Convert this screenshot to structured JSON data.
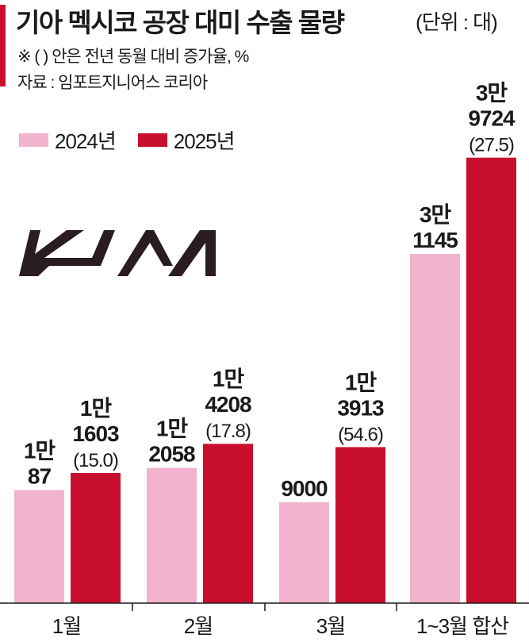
{
  "header": {
    "title": "기아 멕시코 공장 대미 수출 물량",
    "unit": "(단위 : 대)",
    "note": "※ (  ) 안은 전년 동월 대비 증가율, %",
    "source": "자료 : 임포트지니어스 코리아"
  },
  "logo": {
    "icon": "kia-logo",
    "text": "KIA"
  },
  "colors": {
    "accent": "#c8102e",
    "series_2024": "#f2b3cf",
    "series_2025": "#c8102e"
  },
  "chart_data": {
    "type": "bar",
    "categories": [
      "1월",
      "2월",
      "3월",
      "1~3월 합산"
    ],
    "series": [
      {
        "name": "2024년",
        "values": [
          10087,
          12058,
          9000,
          31145
        ],
        "labels": [
          [
            "1만",
            "87"
          ],
          [
            "1만",
            "2058"
          ],
          [
            "9000"
          ],
          [
            "3만",
            "1145"
          ]
        ]
      },
      {
        "name": "2025년",
        "values": [
          11603,
          14208,
          13913,
          39724
        ],
        "labels": [
          [
            "1만",
            "1603",
            "(15.0)"
          ],
          [
            "1만",
            "4208",
            "(17.8)"
          ],
          [
            "1만",
            "3913",
            "(54.6)"
          ],
          [
            "3만",
            "9724",
            "(27.5)"
          ]
        ]
      }
    ],
    "legend_position": "top-left",
    "grid": false,
    "yaxis_visible": false
  }
}
